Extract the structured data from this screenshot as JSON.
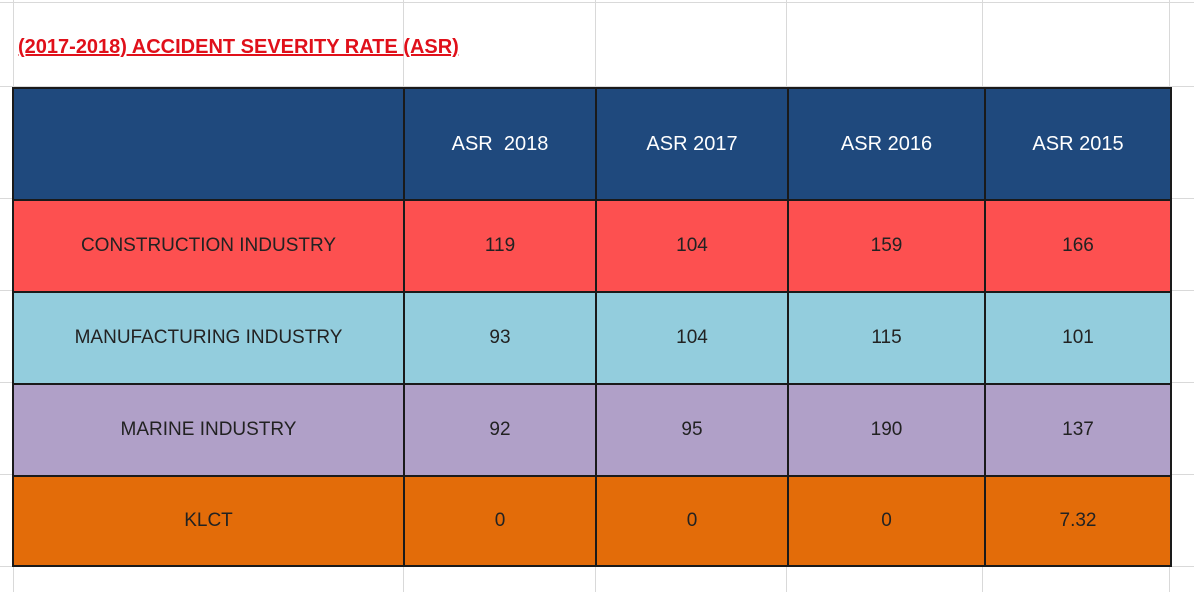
{
  "title": "(2017-2018) ACCIDENT SEVERITY RATE (ASR)",
  "colors": {
    "header_bg": "#1f497d",
    "construction_bg": "#fd5050",
    "manufacturing_bg": "#93cddd",
    "marine_bg": "#b0a0c8",
    "klct_bg": "#e36c09",
    "title_color": "#e0101a"
  },
  "table": {
    "headers": [
      "",
      "ASR  2018",
      "ASR 2017",
      "ASR 2016",
      "ASR 2015"
    ],
    "rows": [
      {
        "label": "CONSTRUCTION INDUSTRY",
        "values": [
          "119",
          "104",
          "159",
          "166"
        ]
      },
      {
        "label": "MANUFACTURING INDUSTRY",
        "values": [
          "93",
          "104",
          "115",
          "101"
        ]
      },
      {
        "label": "MARINE INDUSTRY",
        "values": [
          "92",
          "95",
          "190",
          "137"
        ]
      },
      {
        "label": "KLCT",
        "values": [
          "0",
          "0",
          "0",
          "7.32"
        ]
      }
    ]
  }
}
